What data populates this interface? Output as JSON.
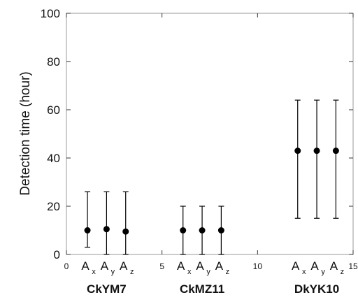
{
  "chart_data": {
    "type": "scatter",
    "title": "",
    "xlabel": "",
    "ylabel": "Detection time (hour)",
    "xlim": [
      0,
      15
    ],
    "ylim": [
      0,
      100
    ],
    "x_ticks": [
      0,
      5,
      10,
      15
    ],
    "y_ticks": [
      0,
      20,
      40,
      60,
      80,
      100
    ],
    "grid": false,
    "point_color": "#000000",
    "groups": [
      {
        "name": "CkYM7",
        "points": [
          {
            "label": "A",
            "sub": "x",
            "x": 1.1,
            "y": 10,
            "low": 3,
            "high": 26
          },
          {
            "label": "A",
            "sub": "y",
            "x": 2.1,
            "y": 10.5,
            "low": 0,
            "high": 26
          },
          {
            "label": "A",
            "sub": "z",
            "x": 3.1,
            "y": 9.5,
            "low": 0,
            "high": 26
          }
        ]
      },
      {
        "name": "CkMZ11",
        "points": [
          {
            "label": "A",
            "sub": "x",
            "x": 6.1,
            "y": 10,
            "low": 0,
            "high": 20
          },
          {
            "label": "A",
            "sub": "y",
            "x": 7.1,
            "y": 10,
            "low": 0,
            "high": 20
          },
          {
            "label": "A",
            "sub": "z",
            "x": 8.1,
            "y": 10,
            "low": 0,
            "high": 20
          }
        ]
      },
      {
        "name": "DkYK10",
        "points": [
          {
            "label": "A",
            "sub": "x",
            "x": 12.1,
            "y": 43,
            "low": 15,
            "high": 64
          },
          {
            "label": "A",
            "sub": "y",
            "x": 13.1,
            "y": 43,
            "low": 15,
            "high": 64
          },
          {
            "label": "A",
            "sub": "z",
            "x": 14.1,
            "y": 43,
            "low": 15,
            "high": 64
          }
        ]
      }
    ]
  }
}
